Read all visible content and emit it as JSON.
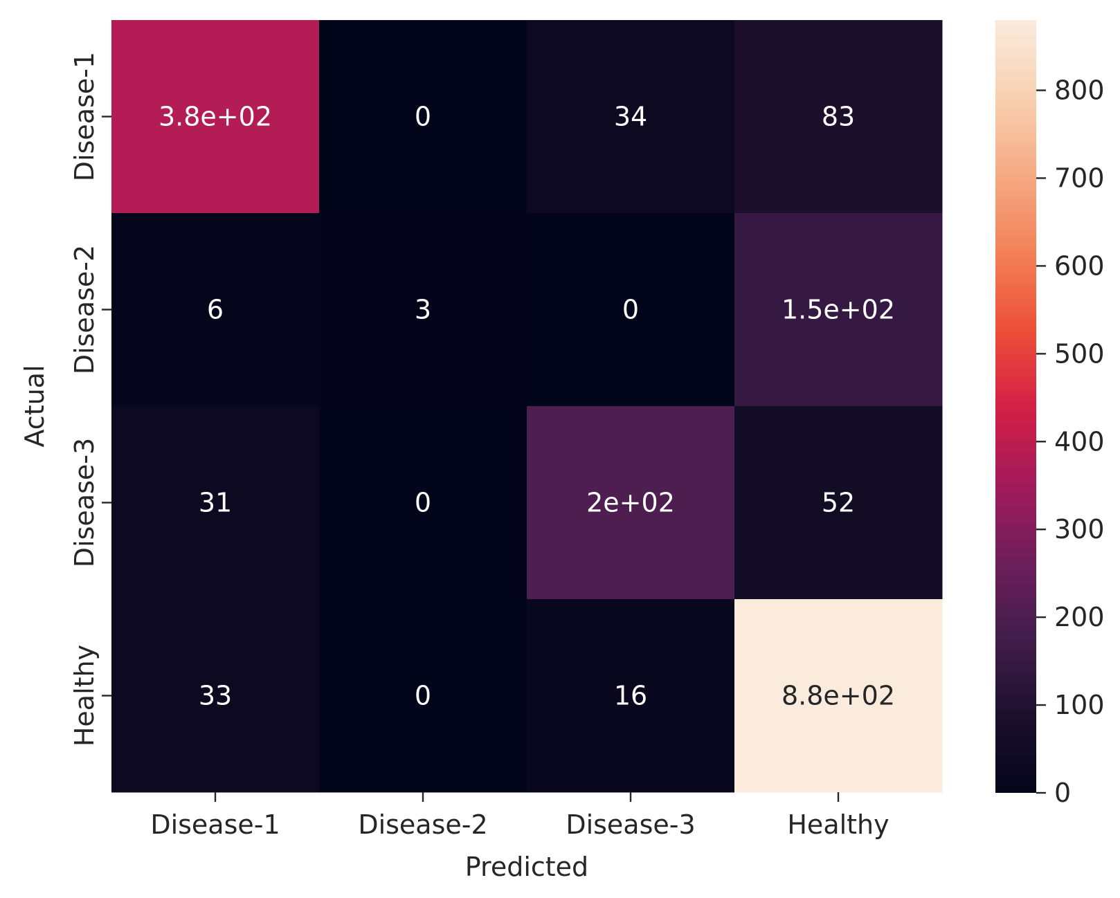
{
  "chart_data": {
    "type": "heatmap",
    "title": "",
    "xlabel": "Predicted",
    "ylabel": "Actual",
    "x_categories": [
      "Disease-1",
      "Disease-2",
      "Disease-3",
      "Healthy"
    ],
    "y_categories": [
      "Disease-1",
      "Disease-2",
      "Disease-3",
      "Healthy"
    ],
    "values": [
      [
        380,
        0,
        34,
        83
      ],
      [
        6,
        3,
        0,
        150
      ],
      [
        31,
        0,
        200,
        52
      ],
      [
        33,
        0,
        16,
        880
      ]
    ],
    "cell_labels": [
      [
        "3.8e+02",
        "0",
        "34",
        "83"
      ],
      [
        "6",
        "3",
        "0",
        "1.5e+02"
      ],
      [
        "31",
        "0",
        "2e+02",
        "52"
      ],
      [
        "33",
        "0",
        "16",
        "8.8e+02"
      ]
    ],
    "colormap": "rocket",
    "colorbar": {
      "range": [
        0,
        880
      ],
      "ticks": [
        0,
        100,
        200,
        300,
        400,
        500,
        600,
        700,
        800
      ],
      "tick_labels": [
        "0",
        "100",
        "200",
        "300",
        "400",
        "500",
        "600",
        "700",
        "800"
      ]
    },
    "grid": false
  }
}
